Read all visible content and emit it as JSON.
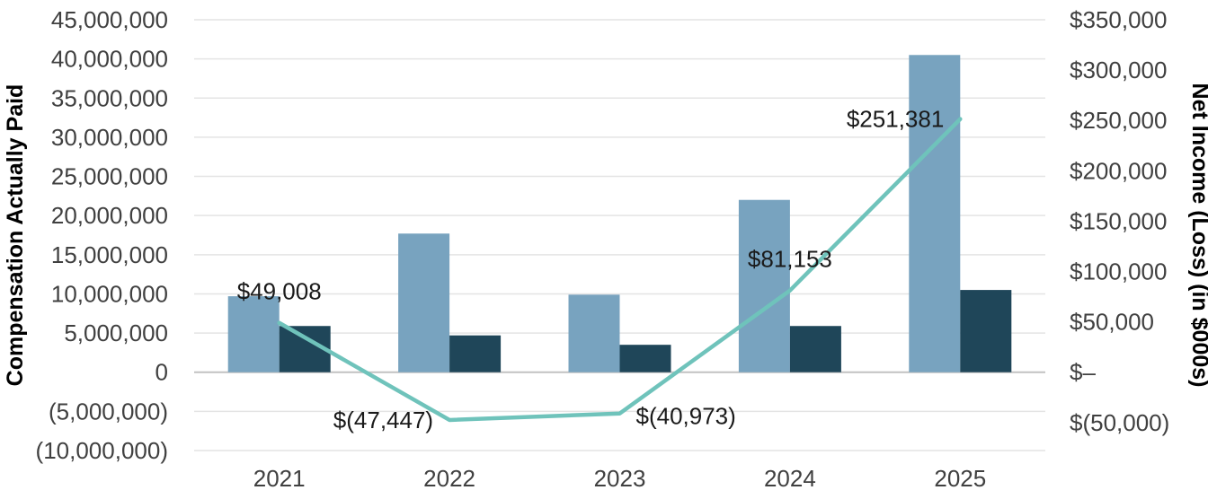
{
  "chart_data": {
    "type": "combo",
    "title": "",
    "categories": [
      "2021",
      "2022",
      "2023",
      "2024",
      "2025"
    ],
    "series": [
      {
        "name": "bar-series-light",
        "type": "bar",
        "axis": "left",
        "color": "#78A3BF",
        "values": [
          9700000,
          17700000,
          9900000,
          22000000,
          40500000
        ]
      },
      {
        "name": "bar-series-dark",
        "type": "bar",
        "axis": "left",
        "color": "#1F4659",
        "values": [
          5900000,
          4700000,
          3500000,
          5900000,
          10500000
        ]
      },
      {
        "name": "line-series-net-income",
        "type": "line",
        "axis": "right",
        "color": "#6FC3BB",
        "values": [
          49008,
          -47447,
          -40973,
          81153,
          251381
        ],
        "point_labels": [
          "$49,008",
          "$(47,447)",
          "$(40,973)",
          "$81,153",
          "$251,381"
        ],
        "label_positions": [
          "above",
          "left",
          "right",
          "above",
          "left"
        ]
      }
    ],
    "left_axis": {
      "title": "Compensation Actually Paid",
      "min": -10000000,
      "max": 45000000,
      "step": 5000000,
      "tick_labels": [
        "45,000,000",
        "40,000,000",
        "35,000,000",
        "30,000,000",
        "25,000,000",
        "20,000,000",
        "15,000,000",
        "10,000,000",
        "5,000,000",
        "0",
        "(5,000,000)",
        "(10,000,000)"
      ]
    },
    "right_axis": {
      "title": "Net Income (Loss) (in $000s)",
      "min": -50000,
      "max": 350000,
      "step": 50000,
      "tick_labels": [
        "$350,000",
        "$300,000",
        "$250,000",
        "$200,000",
        "$150,000",
        "$100,000",
        "$50,000",
        "$–",
        "$(50,000)"
      ]
    },
    "x_axis": {
      "tick_labels": [
        "2021",
        "2022",
        "2023",
        "2024",
        "2025"
      ]
    },
    "grid": {
      "show_horizontal": true,
      "show_vertical": false,
      "color": "#E4E4E4",
      "zero_line_color": "#C2C2C2"
    },
    "legend": {
      "visible": false
    },
    "colors": {
      "bar_light": "#78A3BF",
      "bar_dark": "#1F4659",
      "line": "#6FC3BB",
      "tick_text": "#404040",
      "label_text": "#1a1a1a"
    }
  }
}
